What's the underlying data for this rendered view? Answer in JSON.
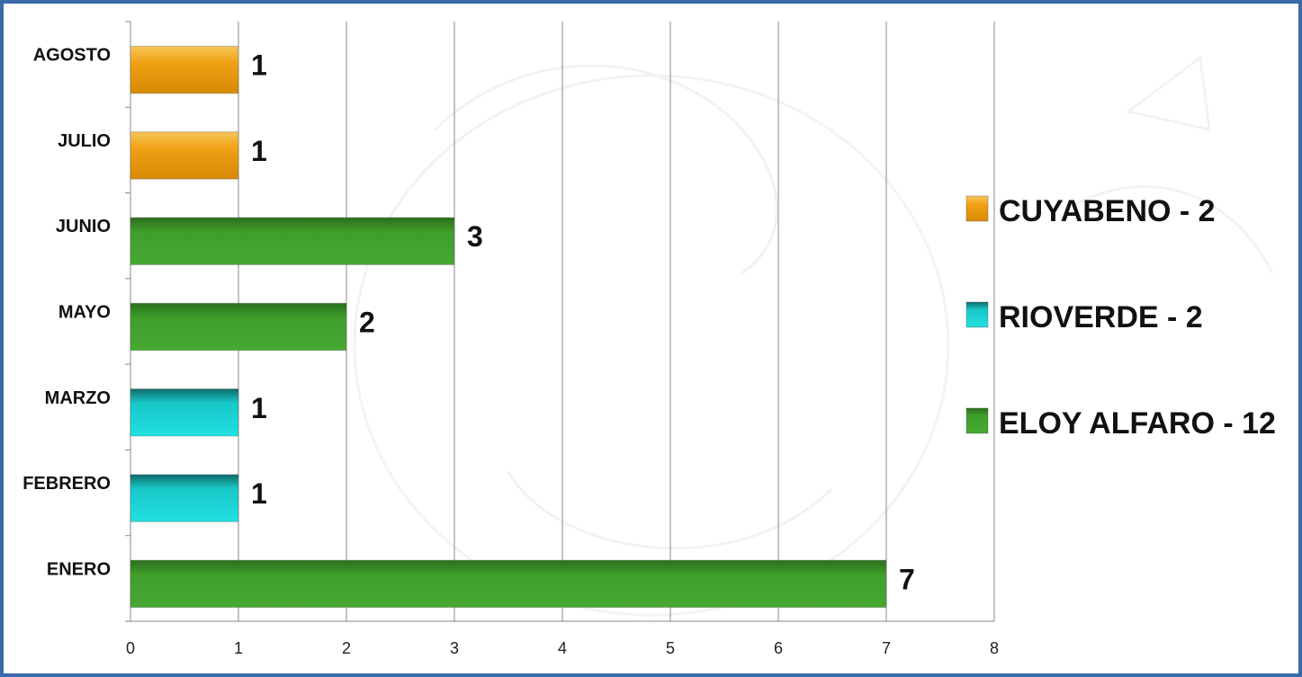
{
  "chart_data": {
    "type": "bar",
    "orientation": "horizontal",
    "title": "",
    "xlabel": "",
    "ylabel": "",
    "xlim": [
      0,
      8
    ],
    "x_ticks": [
      0,
      1,
      2,
      3,
      4,
      5,
      6,
      7,
      8
    ],
    "grid": "vertical",
    "legend_position": "right",
    "categories": [
      "ENERO",
      "FEBRERO",
      "MARZO",
      "MAYO",
      "JUNIO",
      "JULIO",
      "AGOSTO"
    ],
    "series": [
      {
        "name": "CUYABENO - 2",
        "color": "#f0a013",
        "values": [
          null,
          null,
          null,
          null,
          null,
          1,
          1
        ]
      },
      {
        "name": "RIOVERDE - 2",
        "color": "#19d4d4",
        "values": [
          null,
          1,
          1,
          null,
          null,
          null,
          null
        ]
      },
      {
        "name": "ELOY ALFARO - 12",
        "color": "#3f9e2a",
        "values": [
          7,
          null,
          null,
          2,
          3,
          null,
          null
        ]
      }
    ]
  }
}
